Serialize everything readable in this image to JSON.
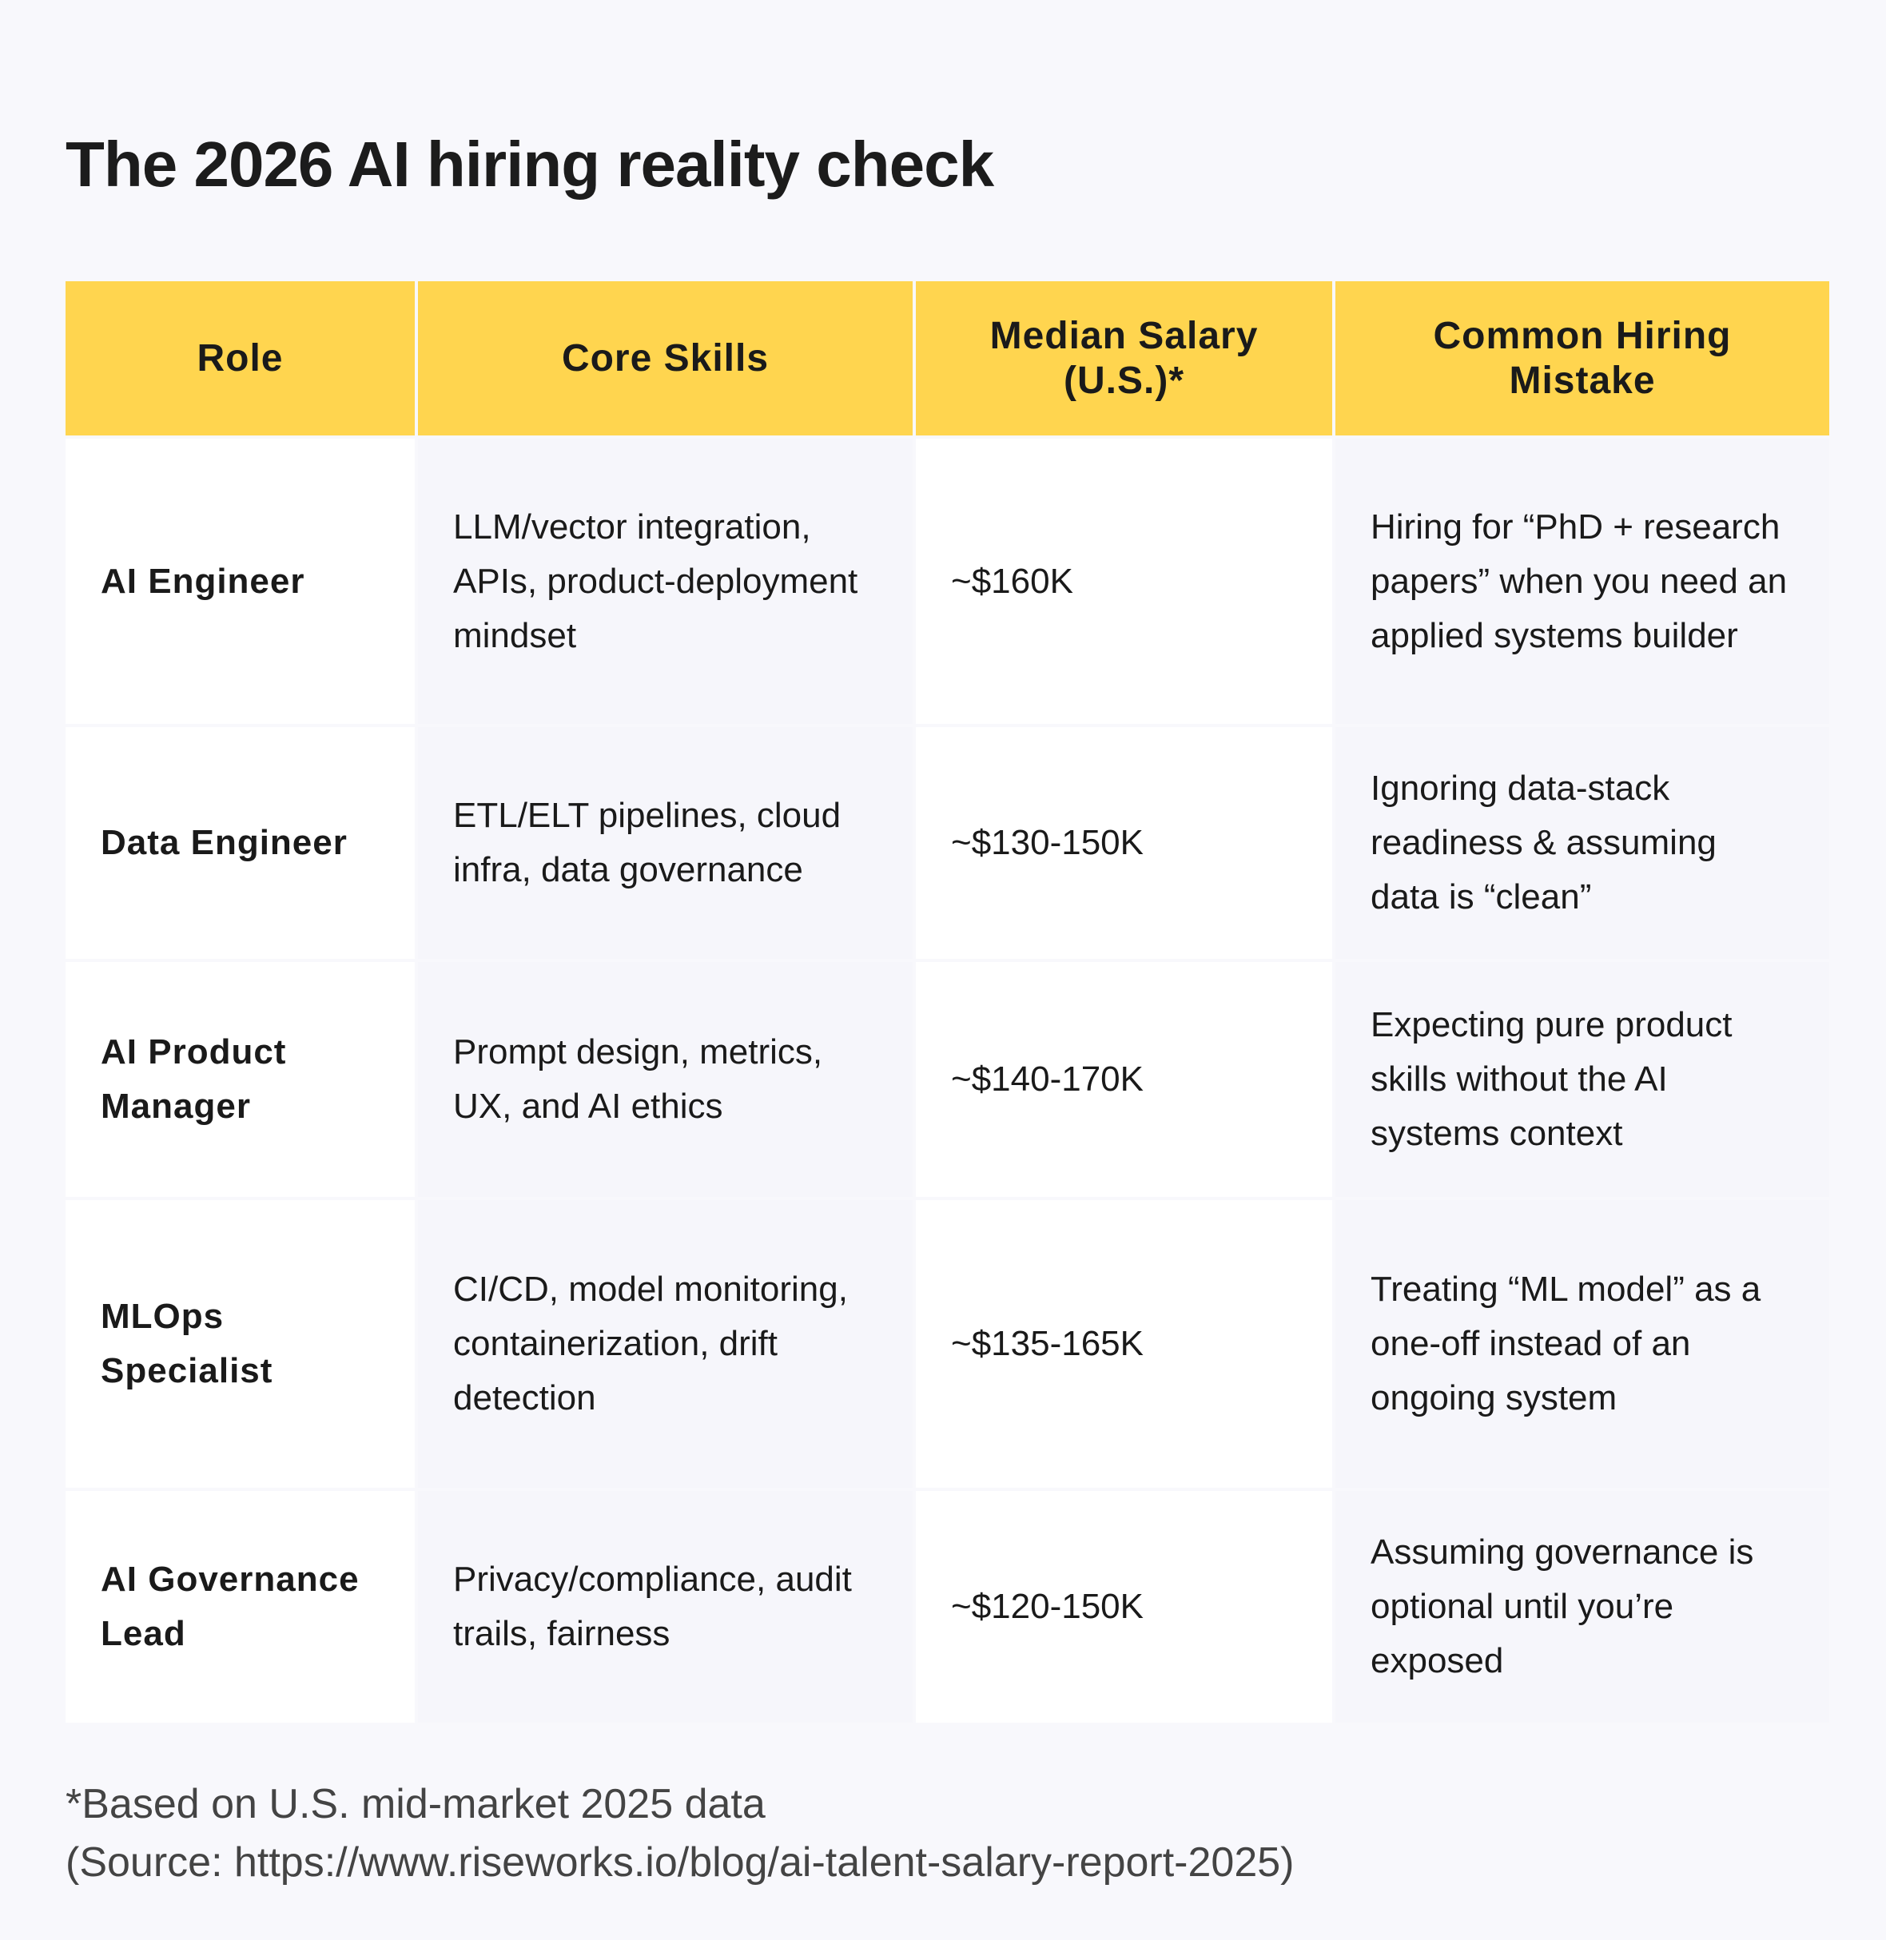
{
  "title": "The 2026 AI hiring reality check",
  "colors": {
    "header_bg": "#ffd54f",
    "page_bg": "#f8f8fc"
  },
  "table": {
    "headers": [
      "Role",
      "Core Skills",
      "Median Salary (U.S.)*",
      "Common Hiring Mistake"
    ],
    "rows": [
      {
        "role": "AI Engineer",
        "skills": "LLM/vector integration, APIs, product-deployment mindset",
        "salary": "~$160K",
        "mistake": "Hiring for “PhD + research papers” when you need an applied systems builder"
      },
      {
        "role": "Data Engineer",
        "skills": "ETL/ELT pipelines, cloud infra, data governance",
        "salary": "~$130-150K",
        "mistake": "Ignoring data-stack readiness & assuming data is “clean”"
      },
      {
        "role": "AI Product Manager",
        "skills": "Prompt design, metrics, UX, and AI ethics",
        "salary": "~$140-170K",
        "mistake": "Expecting pure product skills without the AI systems context"
      },
      {
        "role": "MLOps Specialist",
        "skills": "CI/CD, model monitoring, containerization, drift detection",
        "salary": "~$135-165K",
        "mistake": "Treating “ML model” as a one-off instead of an ongoing system"
      },
      {
        "role": "AI Governance Lead",
        "skills": "Privacy/compliance, audit trails, fairness",
        "salary": "~$120-150K",
        "mistake": "Assuming governance is optional until you’re exposed"
      }
    ]
  },
  "footnote": {
    "line1": "*Based on U.S. mid-market 2025 data",
    "line2": "(Source: https://www.riseworks.io/blog/ai-talent-salary-report-2025)"
  }
}
